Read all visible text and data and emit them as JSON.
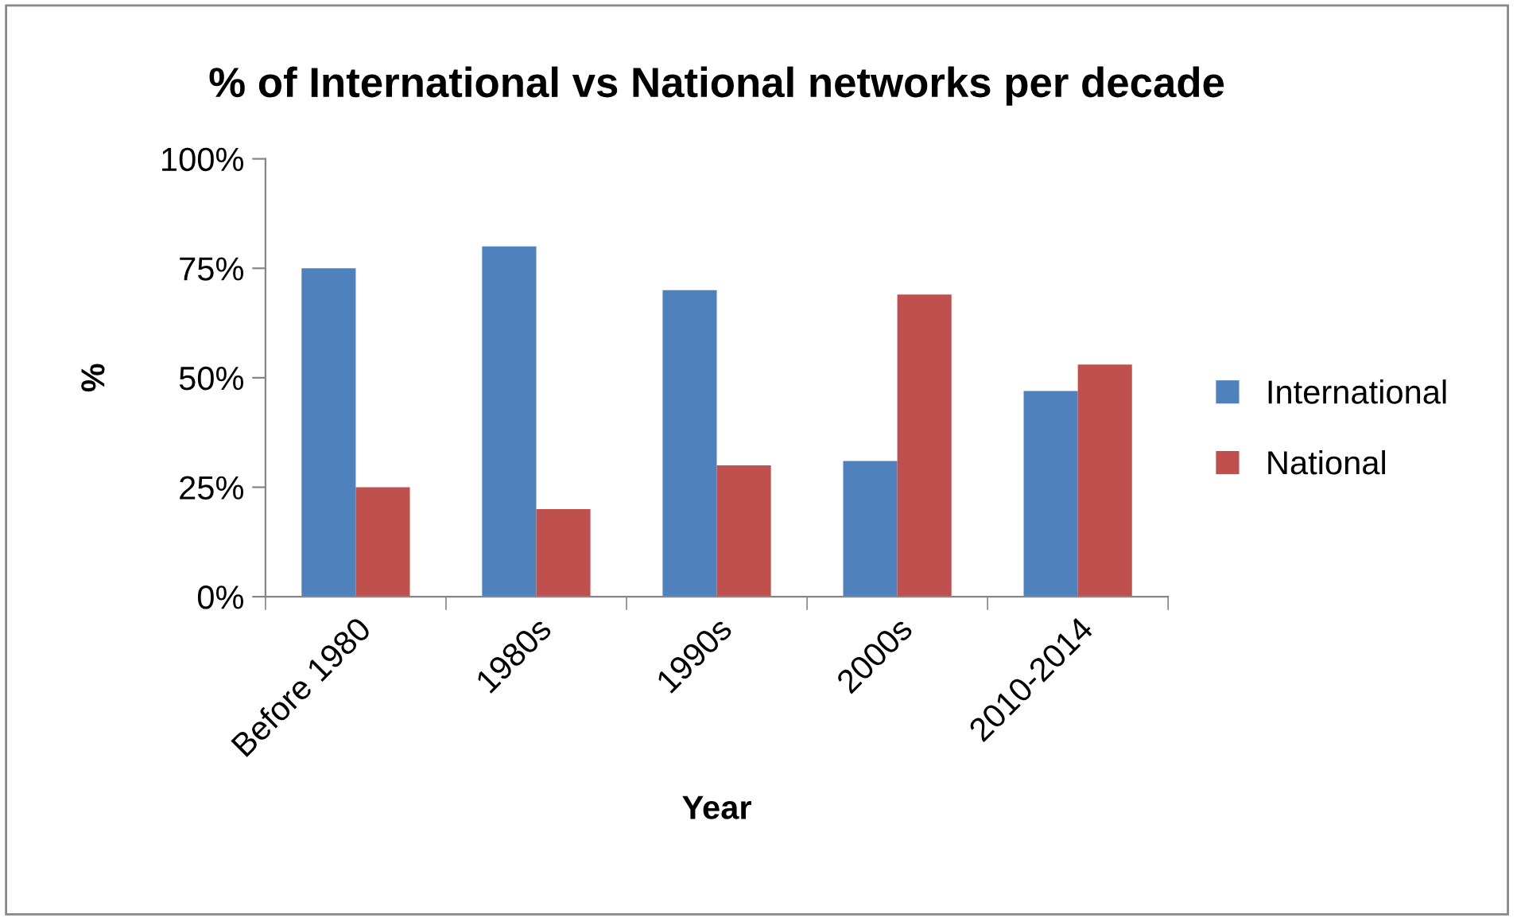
{
  "chart_data": {
    "type": "bar",
    "title": "% of International vs National networks per decade",
    "xlabel": "Year",
    "ylabel": "%",
    "categories": [
      "Before 1980",
      "1980s",
      "1990s",
      "2000s",
      "2010-2014"
    ],
    "series": [
      {
        "name": "International",
        "color": "#4f81bd",
        "values": [
          75,
          80,
          70,
          31,
          47
        ]
      },
      {
        "name": "National",
        "color": "#c0504d",
        "values": [
          25,
          20,
          30,
          69,
          53
        ]
      }
    ],
    "ylim": [
      0,
      100
    ],
    "yticks": [
      {
        "value": 0,
        "label": "0%"
      },
      {
        "value": 25,
        "label": "25%"
      },
      {
        "value": 50,
        "label": "50%"
      },
      {
        "value": 75,
        "label": "75%"
      },
      {
        "value": 100,
        "label": "100%"
      }
    ],
    "grid": false,
    "legend": "right"
  }
}
